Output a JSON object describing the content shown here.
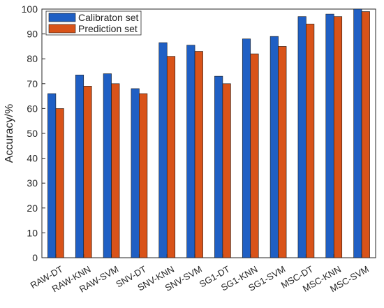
{
  "chart_data": {
    "type": "bar",
    "title": "",
    "xlabel": "",
    "ylabel": "Accuracy/%",
    "ylim": [
      0,
      100
    ],
    "yticks": [
      0,
      10,
      20,
      30,
      40,
      50,
      60,
      70,
      80,
      90,
      100
    ],
    "grid": false,
    "legend_position": "top-left",
    "categories": [
      "RAW-DT",
      "RAW-KNN",
      "RAW-SVM",
      "SNV-DT",
      "SNV-KNN",
      "SNV-SVM",
      "SG1-DT",
      "SG1-KNN",
      "SG1-SVM",
      "MSC-DT",
      "MSC-KNN",
      "MSC-SVM"
    ],
    "series": [
      {
        "name": "Calibraton set",
        "color": "#1f5fc4",
        "values": [
          66,
          73.5,
          74,
          68,
          86.5,
          85.5,
          73,
          88,
          89,
          97,
          98,
          100
        ]
      },
      {
        "name": "Prediction set",
        "color": "#d95319",
        "values": [
          60,
          69,
          70,
          66,
          81,
          83,
          70,
          82,
          85,
          94,
          97,
          99
        ]
      }
    ]
  }
}
